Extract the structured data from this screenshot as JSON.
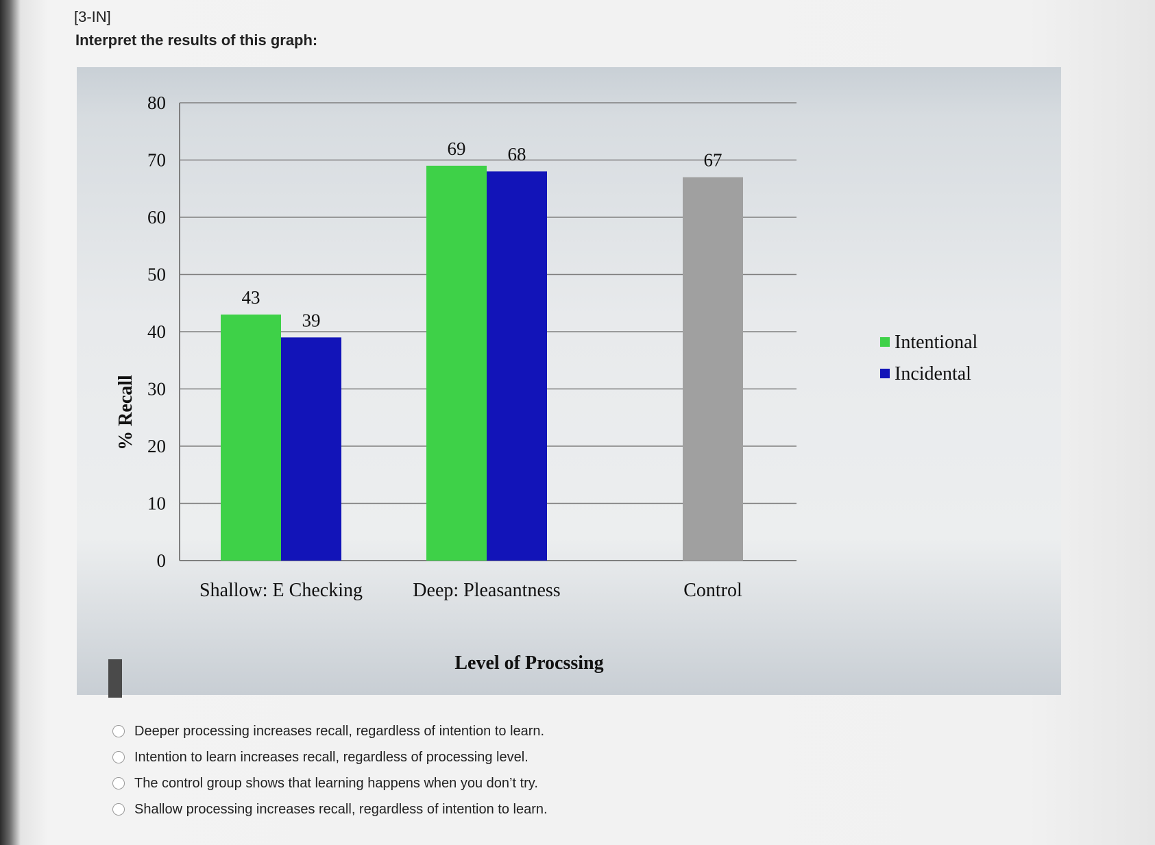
{
  "question": {
    "id": "[3-IN]",
    "prompt": "Interpret the results of this graph:"
  },
  "colors": {
    "intentional": "#3ed148",
    "incidental": "#1214b8",
    "control": "#a0a0a0"
  },
  "chart_data": {
    "type": "bar",
    "categories": [
      "Shallow: E Checking",
      "Deep: Pleasantness",
      "Control"
    ],
    "series": [
      {
        "name": "Intentional",
        "values": [
          43,
          69,
          null
        ]
      },
      {
        "name": "Incidental",
        "values": [
          39,
          68,
          null
        ]
      },
      {
        "values": [
          null,
          null,
          67
        ]
      }
    ],
    "data_labels": [
      [
        "43",
        "39"
      ],
      [
        "69",
        "68"
      ],
      [
        "67"
      ]
    ],
    "ylabel": "% Recall",
    "xlabel": "Level of Procssing",
    "ylim": [
      0,
      80
    ],
    "yticks": [
      0,
      10,
      20,
      30,
      40,
      50,
      60,
      70,
      80
    ],
    "grid": true,
    "legend": "right"
  },
  "options": [
    {
      "label": "Deeper processing increases recall, regardless of intention to learn."
    },
    {
      "label": "Intention to learn increases recall, regardless of processing level."
    },
    {
      "label": "The control group shows that learning happens when you don’t try."
    },
    {
      "label": "Shallow processing increases recall, regardless of intention to learn."
    }
  ]
}
